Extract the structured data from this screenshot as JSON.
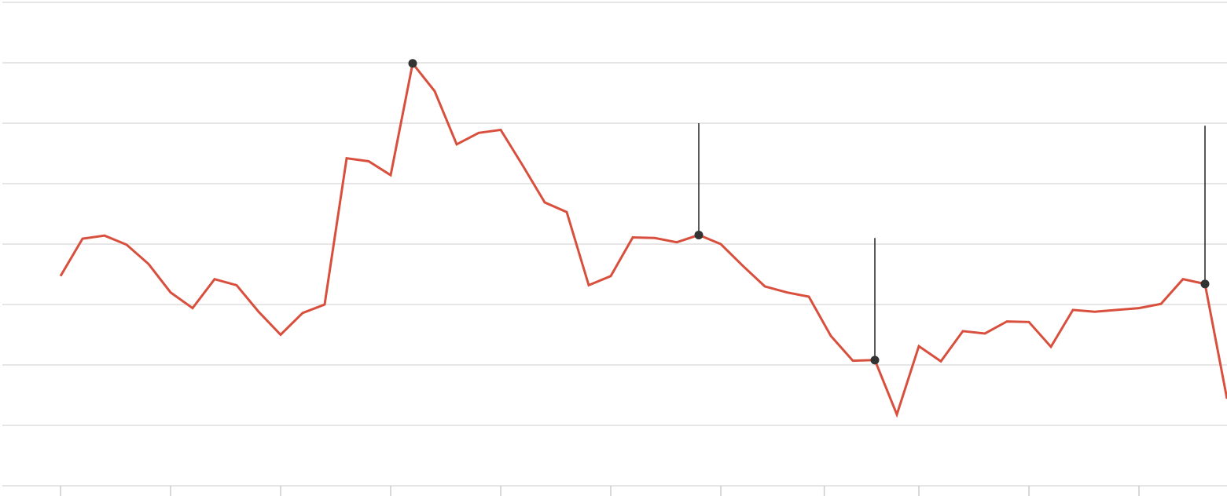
{
  "chart_data": {
    "type": "line",
    "title": "",
    "xlabel": "",
    "ylabel": "",
    "ylim": [
      0,
      8
    ],
    "grid": true,
    "y_gridlines": [
      0,
      1,
      2,
      3,
      4,
      5,
      6,
      7,
      8
    ],
    "x_ticks": [
      0,
      5,
      10,
      15,
      20,
      25,
      30,
      34.7,
      39,
      44,
      49
    ],
    "series": [
      {
        "color": "#d94f3d",
        "values": [
          3.47,
          4.09,
          4.14,
          3.99,
          3.67,
          3.2,
          2.94,
          3.42,
          3.32,
          2.88,
          2.5,
          2.86,
          3.0,
          5.42,
          5.37,
          5.14,
          6.99,
          6.53,
          5.65,
          5.84,
          5.89,
          5.3,
          4.69,
          4.53,
          3.32,
          3.47,
          4.11,
          4.1,
          4.03,
          4.15,
          4.0,
          3.64,
          3.3,
          3.2,
          3.13,
          2.48,
          2.07,
          2.08,
          1.18,
          2.31,
          2.06,
          2.56,
          2.52,
          2.72,
          2.71,
          2.3,
          2.91,
          2.88,
          2.91,
          2.94,
          3.01,
          3.42,
          3.34,
          1.44
        ]
      }
    ],
    "annotations": [
      {
        "index": 16,
        "value": 6.99,
        "marker": "dot",
        "stem_to": 6.99
      },
      {
        "index": 29,
        "value": 4.15,
        "marker": "dot",
        "stem_to": 6.0
      },
      {
        "index": 37,
        "value": 2.08,
        "marker": "dot",
        "stem_to": 4.1
      },
      {
        "index": 52,
        "value": 3.34,
        "marker": "dot",
        "stem_to": 5.96
      }
    ],
    "stem_color": "#222222",
    "marker_color": "#333333",
    "grid_color": "#e6e6e6"
  }
}
